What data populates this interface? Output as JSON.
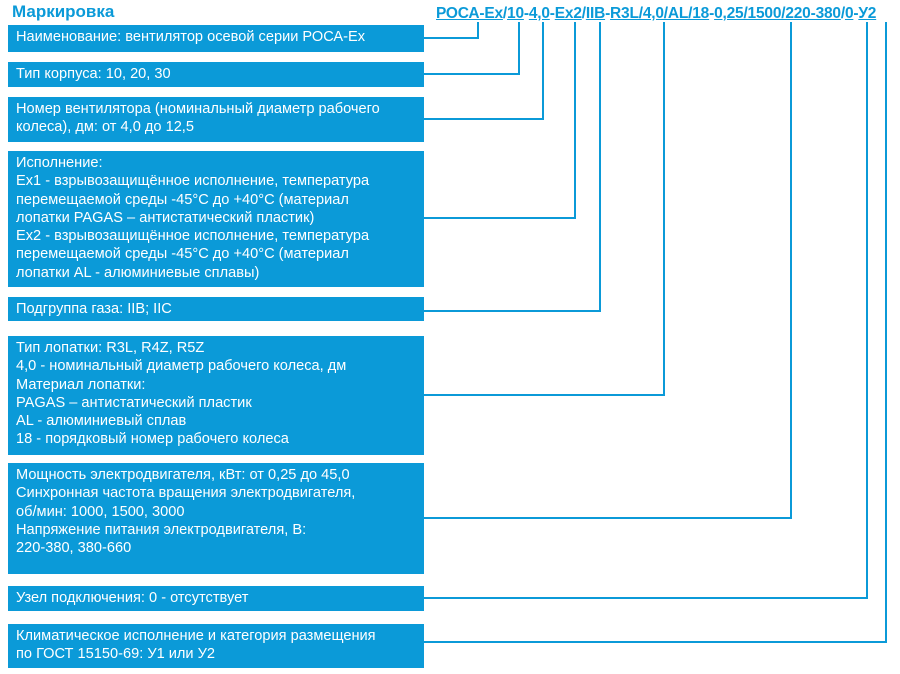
{
  "title": "Маркировка",
  "code_parts": [
    "РОСА-Ex",
    "/",
    "10",
    "-",
    "4,0",
    "-",
    "Ex2",
    "/",
    "IIB",
    "-",
    "R3L/4,0/AL/18",
    "-",
    "0,25/1500/220-380",
    "/",
    "0",
    "-",
    "У2"
  ],
  "boxes": [
    "Наименование: вентилятор осевой серии РОСА-Ex",
    "Тип корпуса: 10, 20, 30",
    "Номер вентилятора (номинальный диаметр рабочего\nколеса), дм: от 4,0 до 12,5",
    "Исполнение:\nEx1 - взрывозащищённое исполнение, температура\nперемещаемой среды -45°С до +40°С (материал\nлопатки PAGAS – антистатический пластик)\nEx2 - взрывозащищённое исполнение, температура\nперемещаемой среды -45°С до +40°С (материал\nлопатки AL - алюминиевые сплавы)",
    "Подгруппа газа: IIB; IIC",
    "Тип лопатки: R3L, R4Z, R5Z\n4,0 - номинальный диаметр рабочего колеса, дм\nМатериал лопатки:\n    PAGAS – антистатический пластик\n    AL - алюминиевый сплав\n18 - порядковый номер рабочего колеса",
    "Мощность электродвигателя, кВт: от 0,25 до 45,0\nСинхронная частота вращения электродвигателя,\nоб/мин: 1000, 1500, 3000\nНапряжение питания электродвигателя, В:\n220-380, 380-660",
    "Узел подключения: 0 - отсутствует",
    "Климатическое исполнение и категория размещения\nпо ГОСТ 15150-69: У1 или У2"
  ],
  "colors": {
    "accent": "#0b9ad8",
    "text_on_accent": "#ffffff"
  }
}
